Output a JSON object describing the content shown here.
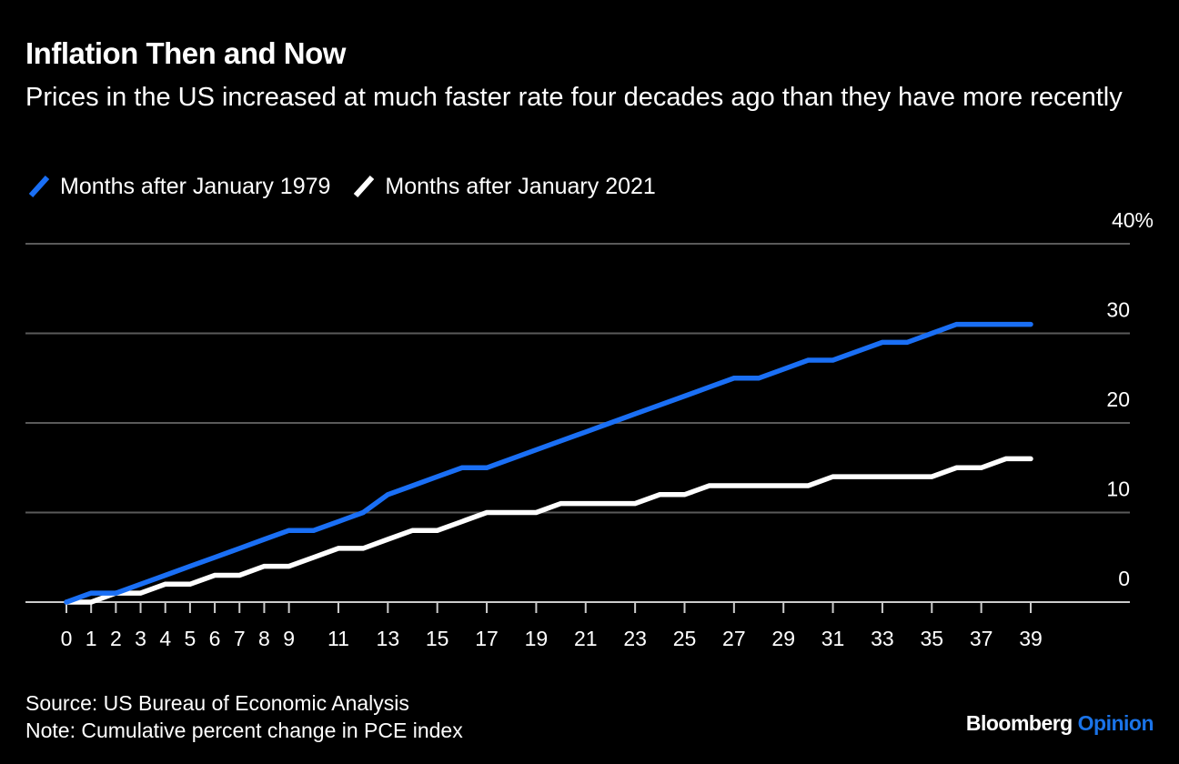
{
  "colors": {
    "background": "#000000",
    "series_1979": "#1a6ff5",
    "series_2021": "#ffffff",
    "grid": "#5a5a5a",
    "axis": "#cccccc",
    "brand_accent": "#1a73e8"
  },
  "brand": {
    "name": "Bloomberg",
    "section": "Opinion"
  },
  "footer": {
    "source": "Source: US Bureau of Economic Analysis",
    "note": "Note: Cumulative percent change in PCE index"
  },
  "chart_data": {
    "type": "line",
    "title": "Inflation Then and Now",
    "subtitle": "Prices in the US increased at much faster rate four decades ago than they have more recently",
    "xlabel": "",
    "ylabel": "",
    "xlim": [
      0,
      39
    ],
    "ylim": [
      0,
      40
    ],
    "y_ticks": [
      0,
      10,
      20,
      30,
      40
    ],
    "y_tick_labels": [
      "0",
      "10",
      "20",
      "30",
      "40%"
    ],
    "x_ticks": [
      0,
      1,
      2,
      3,
      4,
      5,
      6,
      7,
      8,
      9,
      11,
      13,
      15,
      17,
      19,
      21,
      23,
      25,
      27,
      29,
      31,
      33,
      35,
      37,
      39
    ],
    "x_tick_labels": [
      "0",
      "1",
      "2",
      "3",
      "4",
      "5",
      "6",
      "7",
      "8",
      "9",
      "11",
      "13",
      "15",
      "17",
      "19",
      "21",
      "23",
      "25",
      "27",
      "29",
      "31",
      "33",
      "35",
      "37",
      "39"
    ],
    "grid": true,
    "y_axis_position": "right",
    "legend_position": "top-left",
    "x": [
      0,
      1,
      2,
      3,
      4,
      5,
      6,
      7,
      8,
      9,
      10,
      11,
      12,
      13,
      14,
      15,
      16,
      17,
      18,
      19,
      20,
      21,
      22,
      23,
      24,
      25,
      26,
      27,
      28,
      29,
      30,
      31,
      32,
      33,
      34,
      35,
      36,
      37,
      38,
      39
    ],
    "series": [
      {
        "name": "Months after January 1979",
        "color": "#1a6ff5",
        "values": [
          0,
          1,
          1,
          2,
          3,
          4,
          5,
          6,
          7,
          8,
          8,
          9,
          10,
          12,
          13,
          14,
          15,
          15,
          16,
          17,
          18,
          19,
          20,
          21,
          22,
          23,
          24,
          25,
          25,
          26,
          27,
          27,
          28,
          29,
          29,
          30,
          31,
          31,
          31,
          31
        ]
      },
      {
        "name": "Months after January 2021",
        "color": "#ffffff",
        "values": [
          0,
          0,
          1,
          1,
          2,
          2,
          3,
          3,
          4,
          4,
          5,
          6,
          6,
          7,
          8,
          8,
          9,
          10,
          10,
          10,
          11,
          11,
          11,
          11,
          12,
          12,
          13,
          13,
          13,
          13,
          13,
          14,
          14,
          14,
          14,
          14,
          15,
          15,
          16,
          16
        ]
      }
    ]
  }
}
